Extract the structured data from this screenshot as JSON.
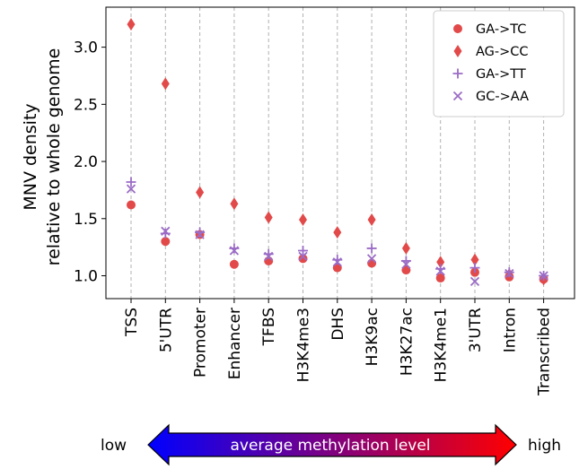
{
  "chart_data": {
    "type": "scatter",
    "title": "",
    "xlabel": "",
    "ylabel_line1": "MNV density",
    "ylabel_line2": "relative to whole genome",
    "ylim": [
      0.8,
      3.35
    ],
    "yticks": [
      "1.0",
      "1.5",
      "2.0",
      "2.5",
      "3.0"
    ],
    "ytick_values": [
      1.0,
      1.5,
      2.0,
      2.5,
      3.0
    ],
    "grid": "vertical dashed lines at each category",
    "legend_position": "top-right",
    "categories": [
      "TSS",
      "5'UTR",
      "Promoter",
      "Enhancer",
      "TFBS",
      "H3K4me3",
      "DHS",
      "H3K9ac",
      "H3K27ac",
      "H3K4me1",
      "3'UTR",
      "Intron",
      "Transcribed"
    ],
    "series": [
      {
        "name": "GA->TC",
        "marker": "circle",
        "color": "#e24a4a",
        "values": [
          1.62,
          1.3,
          1.36,
          1.1,
          1.13,
          1.15,
          1.07,
          1.11,
          1.05,
          0.98,
          1.03,
          0.99,
          0.97
        ]
      },
      {
        "name": "AG->CC",
        "marker": "diamond",
        "color": "#e24a4a",
        "values": [
          3.2,
          2.68,
          1.73,
          1.63,
          1.51,
          1.49,
          1.38,
          1.49,
          1.24,
          1.12,
          1.14,
          1.01,
          0.97
        ]
      },
      {
        "name": "GA->TT",
        "marker": "plus",
        "color": "#9b6cc6",
        "values": [
          1.82,
          1.37,
          1.38,
          1.24,
          1.19,
          1.22,
          1.14,
          1.24,
          1.13,
          1.06,
          1.07,
          1.03,
          1.0
        ]
      },
      {
        "name": "GC->AA",
        "marker": "x",
        "color": "#9b6cc6",
        "values": [
          1.76,
          1.39,
          1.36,
          1.22,
          1.17,
          1.17,
          1.12,
          1.15,
          1.1,
          1.04,
          0.95,
          1.02,
          1.0
        ]
      }
    ],
    "annotation": {
      "left_label": "low",
      "right_label": "high",
      "arrow_label": "average methylation level",
      "gradient_start_color": "#0000ff",
      "gradient_end_color": "#ff0000"
    }
  }
}
